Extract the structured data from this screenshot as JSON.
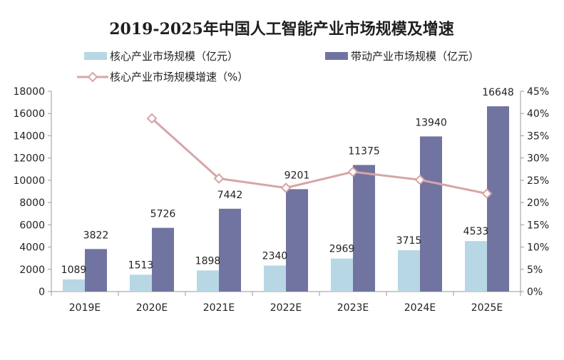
{
  "chart_data": {
    "type": "bar",
    "title": "2019-2025年中国人工智能产业市场规模及增速",
    "categories": [
      "2019E",
      "2020E",
      "2021E",
      "2022E",
      "2023E",
      "2024E",
      "2025E"
    ],
    "series": [
      {
        "name": "核心产业市场规模（亿元）",
        "type": "bar",
        "axis": "left",
        "color": "#b7d7e4",
        "values": [
          1089,
          1513,
          1898,
          2340,
          2969,
          3715,
          4533
        ]
      },
      {
        "name": "带动产业市场规模（亿元）",
        "type": "bar",
        "axis": "left",
        "color": "#7174a0",
        "values": [
          3822,
          5726,
          7442,
          9201,
          11375,
          13940,
          16648
        ]
      },
      {
        "name": "核心产业市场规模增速（%）",
        "type": "line",
        "axis": "right",
        "color": "#d7a5a7",
        "marker": "diamond",
        "values": [
          null,
          38.9,
          25.4,
          23.3,
          26.9,
          25.1,
          22.0
        ]
      }
    ],
    "y_left": {
      "ylim": [
        0,
        18000
      ],
      "ticks": [
        0,
        2000,
        4000,
        6000,
        8000,
        10000,
        12000,
        14000,
        16000,
        18000
      ],
      "tick_labels": [
        "0",
        "2000",
        "4000",
        "6000",
        "8000",
        "10000",
        "12000",
        "14000",
        "16000",
        "18000"
      ]
    },
    "y_right": {
      "ylim": [
        0,
        45
      ],
      "ticks": [
        0,
        5,
        10,
        15,
        20,
        25,
        30,
        35,
        40,
        45
      ],
      "tick_labels": [
        "0%",
        "5%",
        "10%",
        "15%",
        "20%",
        "25%",
        "30%",
        "35%",
        "40%",
        "45%"
      ]
    },
    "grid": false,
    "legend_position": "top"
  }
}
